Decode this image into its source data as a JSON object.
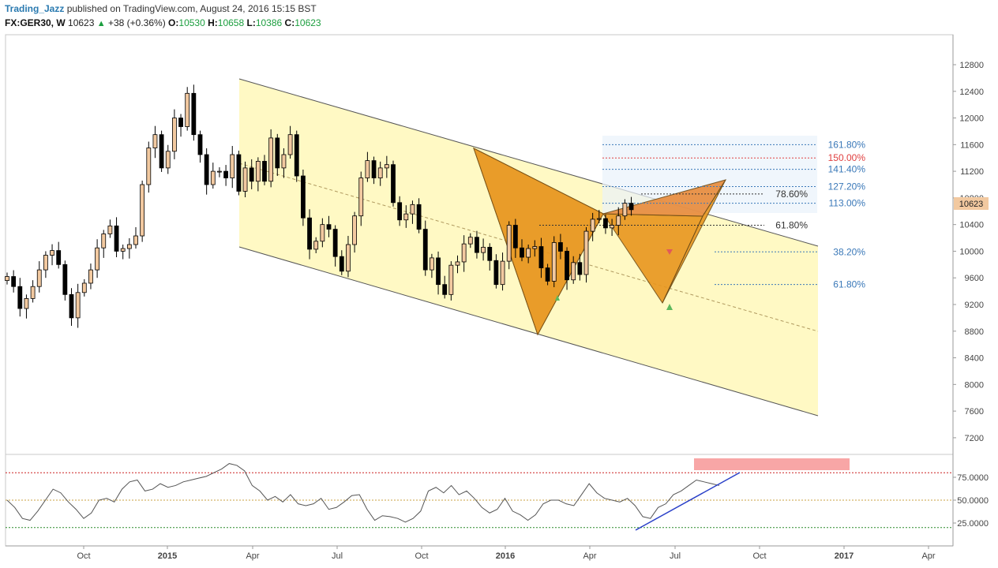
{
  "header": {
    "author": "Trading_Jazz",
    "published_text": "published on TradingView.com, August 24, 2016 15:15 BST",
    "symbol": "FX:GER30, W",
    "last": "10623",
    "change": "+38 (+0.36%)",
    "open_label": "O:",
    "open": "10530",
    "high_label": "H:",
    "high": "10658",
    "low_label": "L:",
    "low": "10386",
    "close_label": "C:",
    "close": "10623"
  },
  "colors": {
    "up_candle": "#f2c9a0",
    "down_candle": "#000000",
    "channel_fill": "#fff9c4",
    "pattern_fill": "#e8961e",
    "fib_blue": "#3a78b8",
    "fib_red": "#e04040",
    "rsi_line": "#555555",
    "trend_line": "#2a40c8",
    "overbought_box": "#f8a6a6"
  },
  "chart_data": {
    "type": "candlestick",
    "x_ticks": [
      "Oct",
      "2015",
      "Apr",
      "Jul",
      "Oct",
      "2016",
      "Apr",
      "Jul",
      "Oct",
      "2017",
      "Apr"
    ],
    "y_ticks": [
      "12800",
      "12400",
      "12000",
      "11600",
      "11200",
      "10800",
      "10400",
      "10000",
      "9600",
      "9200",
      "8800",
      "8400",
      "8000",
      "7600",
      "7200"
    ],
    "ylim": [
      6950,
      13250
    ],
    "last_price": "10623",
    "closes": [
      9620,
      9470,
      9140,
      9290,
      9470,
      9720,
      9940,
      10010,
      9800,
      9350,
      9000,
      9380,
      9520,
      9720,
      10050,
      10260,
      10380,
      10000,
      10040,
      10100,
      10230,
      11000,
      11550,
      11750,
      11250,
      11500,
      12000,
      11870,
      12370,
      11750,
      11450,
      11000,
      11200,
      11200,
      11100,
      11450,
      10900,
      11250,
      11050,
      11350,
      11050,
      11700,
      11250,
      11450,
      11750,
      11130,
      10500,
      10030,
      10150,
      10400,
      10330,
      9920,
      9700,
      10100,
      10530,
      11100,
      11360,
      11100,
      11250,
      11300,
      10730,
      10470,
      10560,
      10700,
      10330,
      9720,
      9900,
      9500,
      9350,
      9790,
      9840,
      10110,
      10210,
      9980,
      10060,
      9860,
      9500,
      9850,
      10390,
      10050,
      9910,
      10040,
      10070,
      9750,
      9550,
      10130,
      10000,
      9570,
      9830,
      9650,
      10300,
      10480,
      10490,
      10350,
      10390,
      10530,
      10720,
      10623
    ],
    "fib_levels": [
      {
        "label": "161.80%",
        "price": 11600,
        "color": "blue"
      },
      {
        "label": "150.00%",
        "price": 11400,
        "color": "red"
      },
      {
        "label": "141.40%",
        "price": 11230,
        "color": "blue"
      },
      {
        "label": "127.20%",
        "price": 10970,
        "color": "blue"
      },
      {
        "label": "78.60%",
        "price": 10860,
        "color": "black"
      },
      {
        "label": "113.00%",
        "price": 10720,
        "color": "blue"
      },
      {
        "label": "61.80%",
        "price": 10390,
        "color": "black"
      },
      {
        "label": "38.20%",
        "price": 9990,
        "color": "blue"
      },
      {
        "label": "61.80%",
        "price": 9500,
        "color": "blue"
      }
    ],
    "oscillator": {
      "y_ticks": [
        "75.0000",
        "50.0000",
        "25.0000"
      ],
      "ylim": [
        0,
        100
      ],
      "levels": [
        80,
        50,
        20
      ],
      "values": [
        50,
        42,
        30,
        28,
        38,
        50,
        62,
        58,
        48,
        40,
        30,
        36,
        50,
        52,
        48,
        62,
        70,
        72,
        60,
        62,
        68,
        64,
        66,
        70,
        72,
        74,
        76,
        80,
        84,
        90,
        88,
        82,
        66,
        60,
        50,
        54,
        48,
        56,
        46,
        44,
        46,
        52,
        40,
        42,
        48,
        55,
        56,
        40,
        28,
        33,
        32,
        30,
        26,
        30,
        38,
        60,
        64,
        58,
        66,
        56,
        60,
        52,
        42,
        36,
        40,
        52,
        38,
        34,
        28,
        34,
        46,
        50,
        50,
        46,
        44,
        56,
        68,
        58,
        52,
        50,
        48,
        52,
        44,
        32,
        30,
        42,
        46,
        56,
        60,
        66,
        72,
        70,
        68,
        66
      ]
    }
  }
}
